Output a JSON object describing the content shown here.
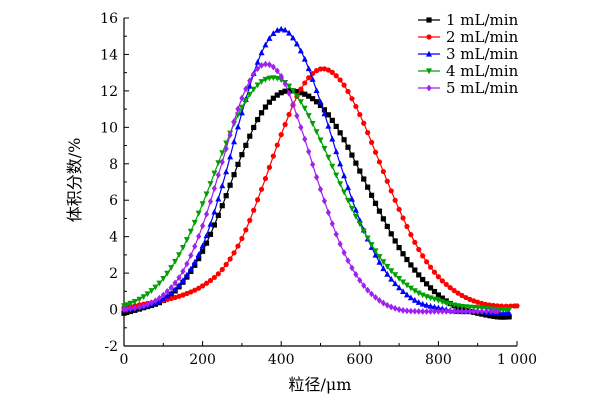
{
  "chart_data": {
    "type": "line",
    "title": "",
    "xlabel": "粒径/μm",
    "ylabel": "体积分数/%",
    "xlim": [
      0,
      1000
    ],
    "ylim": [
      -2,
      16
    ],
    "x_ticks": [
      0,
      200,
      400,
      600,
      800,
      1000
    ],
    "x_tick_labels": [
      "0",
      "200",
      "400",
      "600",
      "800",
      "1 000"
    ],
    "y_ticks": [
      -2,
      0,
      2,
      4,
      6,
      8,
      10,
      12,
      14,
      16
    ],
    "y_tick_labels": [
      "-2",
      "0",
      "2",
      "4",
      "6",
      "8",
      "10",
      "12",
      "14",
      "16"
    ],
    "grid": false,
    "legend_position": "top-right",
    "series": [
      {
        "name": "1 mL/min",
        "color": "#000000",
        "marker": "square",
        "x": [
          0,
          50,
          100,
          150,
          200,
          250,
          300,
          350,
          400,
          450,
          500,
          550,
          600,
          650,
          700,
          750,
          800,
          850,
          900,
          950,
          980
        ],
        "y": [
          -0.2,
          0.1,
          0.5,
          1.5,
          3.2,
          5.7,
          8.5,
          10.8,
          11.9,
          11.9,
          11.2,
          9.7,
          7.6,
          5.4,
          3.4,
          1.9,
          0.8,
          0.1,
          -0.2,
          -0.4,
          -0.4
        ]
      },
      {
        "name": "2 mL/min",
        "color": "#ff0000",
        "marker": "circle",
        "x": [
          0,
          50,
          100,
          150,
          200,
          250,
          300,
          350,
          400,
          450,
          500,
          550,
          600,
          650,
          700,
          750,
          800,
          850,
          900,
          950,
          1000
        ],
        "y": [
          0.1,
          0.3,
          0.5,
          0.8,
          1.3,
          2.2,
          3.9,
          6.6,
          9.6,
          12.1,
          13.2,
          12.6,
          10.7,
          8.1,
          5.5,
          3.3,
          1.8,
          0.9,
          0.4,
          0.2,
          0.2
        ]
      },
      {
        "name": "3 mL/min",
        "color": "#0000ff",
        "marker": "triangle-up",
        "x": [
          0,
          50,
          100,
          150,
          200,
          250,
          300,
          350,
          400,
          450,
          500,
          550,
          600,
          650,
          700,
          750,
          800,
          850,
          900,
          950,
          980
        ],
        "y": [
          0.0,
          0.2,
          0.6,
          1.6,
          3.5,
          6.8,
          10.8,
          14.1,
          15.4,
          14.2,
          11.4,
          8.0,
          4.9,
          2.6,
          1.2,
          0.4,
          0.1,
          -0.1,
          -0.1,
          -0.2,
          -0.2
        ]
      },
      {
        "name": "4 mL/min",
        "color": "#00a000",
        "marker": "triangle-down",
        "x": [
          0,
          50,
          100,
          150,
          200,
          250,
          300,
          350,
          400,
          450,
          500,
          550,
          600,
          650,
          700,
          750,
          800,
          850,
          900,
          950,
          980
        ],
        "y": [
          0.2,
          0.7,
          1.7,
          3.4,
          5.8,
          8.6,
          11.1,
          12.5,
          12.6,
          11.4,
          9.3,
          6.9,
          4.7,
          2.9,
          1.7,
          0.9,
          0.5,
          0.2,
          0.1,
          0.0,
          0.0
        ]
      },
      {
        "name": "5 mL/min",
        "color": "#a020f0",
        "marker": "diamond",
        "x": [
          0,
          50,
          100,
          150,
          200,
          250,
          300,
          350,
          400,
          450,
          500,
          550,
          600,
          650,
          700,
          750,
          800,
          850,
          900,
          950
        ],
        "y": [
          0.0,
          0.2,
          0.8,
          2.1,
          4.6,
          8.1,
          11.6,
          13.4,
          12.8,
          10.0,
          6.6,
          3.6,
          1.6,
          0.5,
          0.0,
          -0.1,
          -0.1,
          -0.1,
          -0.1,
          -0.1
        ]
      }
    ]
  }
}
